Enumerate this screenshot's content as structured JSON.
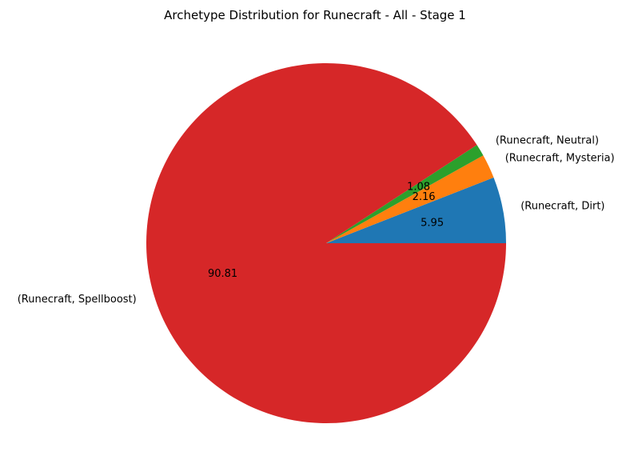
{
  "chart_data": {
    "type": "pie",
    "title": "Archetype Distribution for Runecraft - All - Stage 1",
    "start_angle_deg": 0,
    "direction": "counterclockwise",
    "legend": "none",
    "slices": [
      {
        "label": "(Runecraft, Dirt)",
        "value": 5.95,
        "value_label": "5.95",
        "color": "#1f77b4"
      },
      {
        "label": "(Runecraft, Mysteria)",
        "value": 2.16,
        "value_label": "2.16",
        "color": "#ff7f0e"
      },
      {
        "label": "(Runecraft, Neutral)",
        "value": 1.08,
        "value_label": "1.08",
        "color": "#2ca02c"
      },
      {
        "label": "(Runecraft, Spellboost)",
        "value": 90.81,
        "value_label": "90.81",
        "color": "#d62728"
      }
    ]
  }
}
